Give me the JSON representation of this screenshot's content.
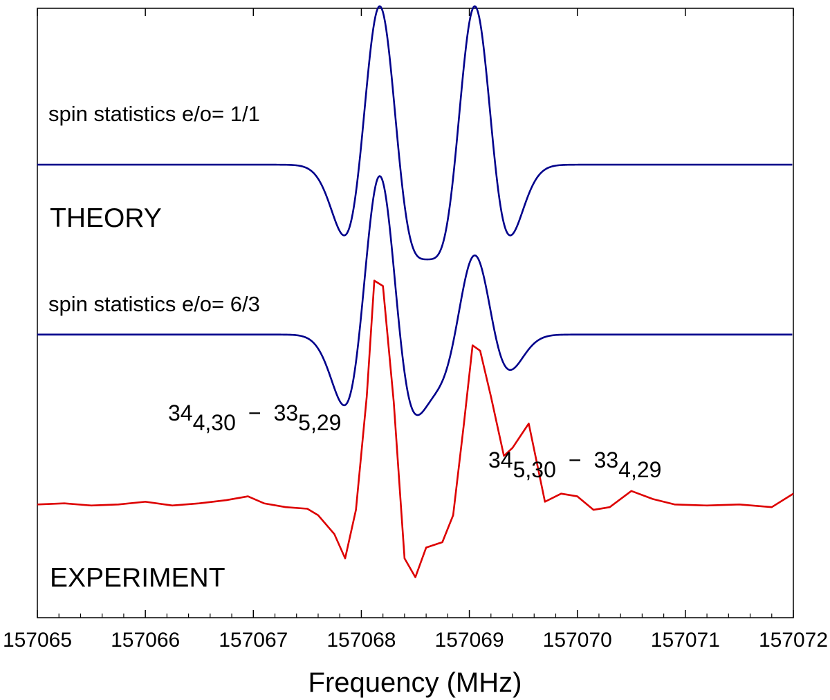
{
  "chart_data": {
    "type": "line",
    "title": "",
    "xlabel": "Frequency (MHz)",
    "ylabel": "",
    "xlim": [
      157065,
      157072
    ],
    "ylim": [
      -10.3,
      1.0
    ],
    "xticks": [
      "157065",
      "157066",
      "157067",
      "157068",
      "157069",
      "157070",
      "157071",
      "157072"
    ],
    "grid": false,
    "labels": {
      "theory_1": "spin statistics e/o= 1/1",
      "theory": "THEORY",
      "theory_2": "spin statistics e/o= 6/3",
      "experiment": "EXPERIMENT"
    },
    "annotations": [
      {
        "upper": "34",
        "upper_sub": "4,30",
        "dash": "−",
        "lower": "33",
        "lower_sub": "5,29",
        "x": 157068.15
      },
      {
        "upper": "34",
        "upper_sub": "5,30",
        "dash": "−",
        "lower": "33",
        "lower_sub": "4,29",
        "x": 157069.05
      }
    ],
    "series": [
      {
        "name": "spin statistics e/o= 1/1",
        "color": "#00008b",
        "kind": "model",
        "baseline": -1.9,
        "peaks": [
          {
            "x0": 157068.17,
            "amp": 2.94,
            "w": 0.19
          },
          {
            "x0": 157069.05,
            "amp": 2.94,
            "w": 0.19
          }
        ]
      },
      {
        "name": "spin statistics e/o= 6/3",
        "color": "#00008b",
        "kind": "model",
        "baseline": -5.05,
        "peaks": [
          {
            "x0": 157068.17,
            "amp": 2.94,
            "w": 0.19
          },
          {
            "x0": 157069.05,
            "amp": 1.47,
            "w": 0.19
          }
        ]
      },
      {
        "name": "EXPERIMENT",
        "color": "#dd0000",
        "kind": "points",
        "x": [
          157065.0,
          157065.25,
          157065.5,
          157065.75,
          157066.0,
          157066.25,
          157066.5,
          157066.75,
          157066.95,
          157067.1,
          157067.3,
          157067.5,
          157067.6,
          157067.75,
          157067.85,
          157067.95,
          157068.05,
          157068.12,
          157068.2,
          157068.3,
          157068.4,
          157068.5,
          157068.6,
          157068.75,
          157068.85,
          157068.95,
          157069.03,
          157069.1,
          157069.2,
          157069.32,
          157069.4,
          157069.55,
          157069.7,
          157069.85,
          157070.0,
          157070.15,
          157070.3,
          157070.5,
          157070.7,
          157070.9,
          157071.2,
          157071.5,
          157071.8,
          157072.0
        ],
        "y": [
          -8.2,
          -8.18,
          -8.22,
          -8.2,
          -8.15,
          -8.22,
          -8.18,
          -8.12,
          -8.05,
          -8.18,
          -8.25,
          -8.28,
          -8.4,
          -8.75,
          -9.2,
          -8.3,
          -6.2,
          -4.05,
          -4.15,
          -6.3,
          -9.2,
          -9.55,
          -9.0,
          -8.9,
          -8.4,
          -6.7,
          -5.25,
          -5.35,
          -6.2,
          -7.3,
          -7.15,
          -6.7,
          -8.15,
          -8.0,
          -8.05,
          -8.3,
          -8.25,
          -7.95,
          -8.1,
          -8.2,
          -8.22,
          -8.2,
          -8.25,
          -8.0
        ]
      }
    ]
  }
}
